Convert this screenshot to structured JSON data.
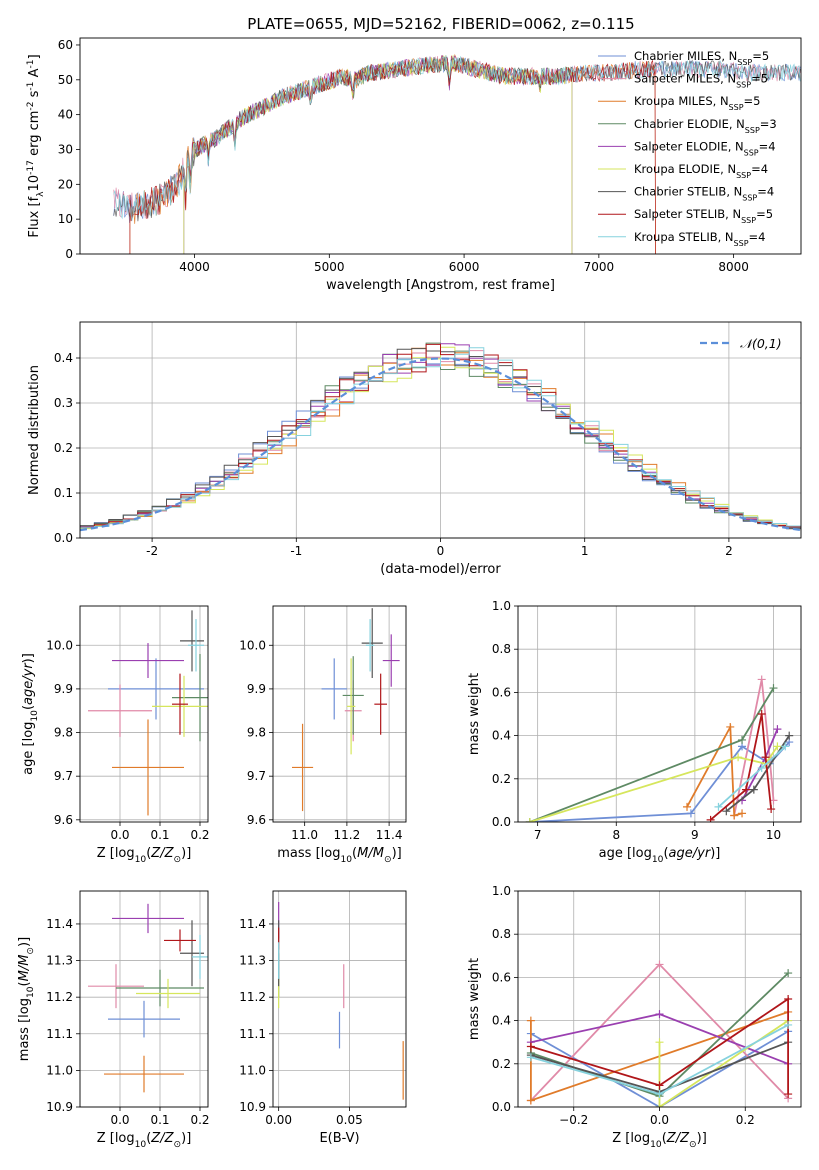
{
  "figure_title": "PLATE=0655, MJD=52162, FIBERID=0062, z=0.115",
  "series_colors": {
    "chabrier_miles": "#6f8fd6",
    "salpeter_miles": "#e08aa8",
    "kroupa_miles": "#e07b2a",
    "chabrier_elodie": "#5e8a64",
    "salpeter_elodie": "#9a3fb0",
    "kroupa_elodie": "#d6e65c",
    "chabrier_stelib": "#555555",
    "salpeter_stelib": "#b0161a",
    "kroupa_stelib": "#86d2de"
  },
  "chart_data": [
    {
      "id": "spectrum",
      "type": "line",
      "title": "PLATE=0655, MJD=52162, FIBERID=0062, z=0.115",
      "xlabel": "wavelength [Angstrom, rest frame]",
      "ylabel": "Flux [f$_\\lambda$10$^{-17}$ erg cm$^{-2}$ s$^{-1}$ A$^{-1}$]",
      "xlim": [
        3150,
        8500
      ],
      "ylim": [
        0,
        62
      ],
      "xticks": [
        4000,
        5000,
        6000,
        7000,
        8000
      ],
      "yticks": [
        0,
        10,
        20,
        30,
        40,
        50,
        60
      ],
      "grid": false,
      "legend": "top-right",
      "continuum": {
        "x": [
          3400,
          3550,
          3700,
          3800,
          3900,
          3950,
          4050,
          4150,
          4250,
          4350,
          4500,
          4650,
          4800,
          4950,
          5100,
          5200,
          5300,
          5500,
          5700,
          5900,
          6100,
          6300,
          6500,
          6700,
          6900,
          7100,
          7300,
          7500,
          7700,
          7900,
          8100,
          8300,
          8500
        ],
        "y": [
          15,
          13,
          15,
          17,
          22,
          28,
          31,
          33,
          36,
          39,
          42,
          45,
          47,
          49,
          51,
          50,
          52,
          53,
          54,
          55,
          53,
          51,
          51,
          51,
          52,
          52,
          53,
          53,
          53,
          53,
          52,
          52,
          52
        ]
      },
      "series": [
        {
          "name": "Chabrier MILES, N$_{SSP}$=5",
          "x_start": 3400,
          "x_end": 8500
        },
        {
          "name": "Salpeter MILES, N$_{SSP}$=5",
          "x_start": 3400,
          "x_end": 8500
        },
        {
          "name": "Kroupa MILES, N$_{SSP}$=5",
          "x_start": 3520,
          "x_end": 7420
        },
        {
          "name": "Chabrier ELODIE, N$_{SSP}$=3",
          "x_start": 3920,
          "x_end": 6800
        },
        {
          "name": "Salpeter ELODIE, N$_{SSP}$=4",
          "x_start": 3920,
          "x_end": 6800
        },
        {
          "name": "Kroupa ELODIE, N$_{SSP}$=4",
          "x_start": 3920,
          "x_end": 6800
        },
        {
          "name": "Chabrier STELIB, N$_{SSP}$=4",
          "x_start": 3400,
          "x_end": 8500
        },
        {
          "name": "Salpeter STELIB, N$_{SSP}$=5",
          "x_start": 3520,
          "x_end": 7420
        },
        {
          "name": "Kroupa STELIB, N$_{SSP}$=4",
          "x_start": 3400,
          "x_end": 8500
        }
      ]
    },
    {
      "id": "residuals",
      "type": "bar",
      "xlabel": "(data-model)/error",
      "ylabel": "Normed distribution",
      "xlim": [
        -2.5,
        2.5
      ],
      "ylim": [
        0,
        0.48
      ],
      "xticks": [
        -2,
        -1,
        0,
        1,
        2
      ],
      "yticks": [
        0.0,
        0.1,
        0.2,
        0.3,
        0.4
      ],
      "grid": true,
      "legend": "top-right",
      "reference": {
        "name": "$\\mathcal{N}(0,1)$",
        "mean": 0,
        "sigma": 1
      },
      "bin_width": 0.1,
      "histogram": "step"
    },
    {
      "id": "age_vs_Z",
      "type": "scatter",
      "xlabel": "Z [log$_{10}$($Z/Z_\\odot$)]",
      "ylabel": "age  [log$_{10}$($age/yr$)]",
      "xlim": [
        -0.1,
        0.22
      ],
      "ylim": [
        9.595,
        10.09
      ],
      "xticks": [
        0.0,
        0.1,
        0.2
      ],
      "yticks": [
        9.6,
        9.7,
        9.8,
        9.9,
        10.0
      ],
      "grid": true,
      "points": [
        {
          "x": 0.09,
          "y": 9.9,
          "xerr": 0.12,
          "yerr": 0.07
        },
        {
          "x": 0.0,
          "y": 9.85,
          "xerr": 0.08,
          "yerr": 0.06
        },
        {
          "x": 0.07,
          "y": 9.72,
          "xerr": 0.09,
          "yerr": 0.11
        },
        {
          "x": 0.2,
          "y": 9.88,
          "xerr": 0.07,
          "yerr": 0.1
        },
        {
          "x": 0.07,
          "y": 9.965,
          "xerr": 0.09,
          "yerr": 0.04
        },
        {
          "x": 0.16,
          "y": 9.86,
          "xerr": 0.08,
          "yerr": 0.07
        },
        {
          "x": 0.18,
          "y": 10.01,
          "xerr": 0.03,
          "yerr": 0.07
        },
        {
          "x": 0.15,
          "y": 9.865,
          "xerr": 0.02,
          "yerr": 0.07
        },
        {
          "x": 0.19,
          "y": 10.0,
          "xerr": 0.02,
          "yerr": 0.06
        }
      ]
    },
    {
      "id": "age_vs_mass",
      "type": "scatter",
      "xlabel": "mass [log$_{10}$($M/M_\\odot$)]",
      "ylabel": "",
      "xlim": [
        10.85,
        11.48
      ],
      "ylim": [
        9.595,
        10.09
      ],
      "xticks": [
        11.0,
        11.2,
        11.4
      ],
      "yticks": [
        9.6,
        9.7,
        9.8,
        9.9,
        10.0
      ],
      "grid": true,
      "points": [
        {
          "x": 11.14,
          "y": 9.9,
          "xerr": 0.06,
          "yerr": 0.07
        },
        {
          "x": 11.23,
          "y": 9.85,
          "xerr": 0.04,
          "yerr": 0.07
        },
        {
          "x": 10.99,
          "y": 9.72,
          "xerr": 0.05,
          "yerr": 0.1
        },
        {
          "x": 11.23,
          "y": 9.885,
          "xerr": 0.05,
          "yerr": 0.09
        },
        {
          "x": 11.41,
          "y": 9.965,
          "xerr": 0.04,
          "yerr": 0.06
        },
        {
          "x": 11.22,
          "y": 9.86,
          "xerr": 0.02,
          "yerr": 0.11
        },
        {
          "x": 11.32,
          "y": 10.005,
          "xerr": 0.05,
          "yerr": 0.08
        },
        {
          "x": 11.36,
          "y": 9.865,
          "xerr": 0.03,
          "yerr": 0.07
        },
        {
          "x": 11.31,
          "y": 10.0,
          "xerr": 0.02,
          "yerr": 0.06
        }
      ]
    },
    {
      "id": "mass_weight_vs_age",
      "type": "line",
      "xlabel": "age  [log$_{10}$($age/yr$)]",
      "ylabel": "mass weight",
      "xlim": [
        6.75,
        10.35
      ],
      "ylim": [
        0,
        1.0
      ],
      "xticks": [
        7,
        8,
        9,
        10
      ],
      "yticks": [
        0.0,
        0.2,
        0.4,
        0.6,
        0.8,
        1.0
      ],
      "grid": true,
      "series": [
        {
          "name": "Chabrier MILES",
          "x": [
            6.9,
            8.95,
            9.6,
            9.95,
            10.2
          ],
          "y": [
            0.0,
            0.04,
            0.35,
            0.27,
            0.37
          ]
        },
        {
          "name": "Salpeter MILES",
          "x": [
            9.5,
            9.85,
            9.95,
            10.0
          ],
          "y": [
            0.03,
            0.66,
            0.3,
            0.1
          ]
        },
        {
          "name": "Kroupa MILES",
          "x": [
            8.9,
            9.45,
            9.5,
            9.6
          ],
          "y": [
            0.07,
            0.44,
            0.03,
            0.04
          ]
        },
        {
          "name": "Chabrier ELODIE",
          "x": [
            6.9,
            9.6,
            10.0
          ],
          "y": [
            0.0,
            0.38,
            0.62
          ]
        },
        {
          "name": "Salpeter ELODIE",
          "x": [
            9.6,
            9.9,
            10.05
          ],
          "y": [
            0.1,
            0.3,
            0.43
          ]
        },
        {
          "name": "Kroupa ELODIE",
          "x": [
            6.9,
            9.55,
            9.9,
            10.05
          ],
          "y": [
            0.0,
            0.3,
            0.27,
            0.35
          ]
        },
        {
          "name": "Chabrier STELIB",
          "x": [
            9.4,
            9.75,
            10.2
          ],
          "y": [
            0.05,
            0.15,
            0.4
          ]
        },
        {
          "name": "Salpeter STELIB",
          "x": [
            9.2,
            9.65,
            9.85,
            9.9,
            9.97
          ],
          "y": [
            0.01,
            0.15,
            0.5,
            0.3,
            0.06
          ]
        },
        {
          "name": "Kroupa STELIB",
          "x": [
            9.3,
            9.85,
            10.15
          ],
          "y": [
            0.07,
            0.25,
            0.35
          ]
        }
      ]
    },
    {
      "id": "mass_vs_Z",
      "type": "scatter",
      "xlabel": "Z [log$_{10}$($Z/Z_\\odot$)]",
      "ylabel": "mass [log$_{10}$($M/M_\\odot$)]",
      "xlim": [
        -0.1,
        0.22
      ],
      "ylim": [
        10.9,
        11.49
      ],
      "xticks": [
        0.0,
        0.1,
        0.2
      ],
      "yticks": [
        10.9,
        11.0,
        11.1,
        11.2,
        11.3,
        11.4
      ],
      "grid": true,
      "points": [
        {
          "x": 0.06,
          "y": 11.14,
          "xerr": 0.09,
          "yerr": 0.05
        },
        {
          "x": -0.01,
          "y": 11.23,
          "xerr": 0.07,
          "yerr": 0.06
        },
        {
          "x": 0.06,
          "y": 10.99,
          "xerr": 0.1,
          "yerr": 0.05
        },
        {
          "x": 0.1,
          "y": 11.225,
          "xerr": 0.11,
          "yerr": 0.05
        },
        {
          "x": 0.07,
          "y": 11.415,
          "xerr": 0.09,
          "yerr": 0.04
        },
        {
          "x": 0.12,
          "y": 11.21,
          "xerr": 0.08,
          "yerr": 0.04
        },
        {
          "x": 0.18,
          "y": 11.32,
          "xerr": 0.03,
          "yerr": 0.09
        },
        {
          "x": 0.15,
          "y": 11.355,
          "xerr": 0.04,
          "yerr": 0.03
        },
        {
          "x": 0.2,
          "y": 11.31,
          "xerr": 0.02,
          "yerr": 0.06
        }
      ]
    },
    {
      "id": "mass_vs_ebv",
      "type": "scatter",
      "xlabel": "E(B-V)",
      "ylabel": "",
      "xlim": [
        -0.004,
        0.09
      ],
      "ylim": [
        10.9,
        11.49
      ],
      "xticks": [
        0.0,
        0.05
      ],
      "yticks": [
        10.9,
        11.0,
        11.1,
        11.2,
        11.3,
        11.4
      ],
      "grid": true,
      "points": [
        {
          "x": 0.043,
          "y": 11.11,
          "yerr": 0.05
        },
        {
          "x": 0.046,
          "y": 11.23,
          "yerr": 0.06
        },
        {
          "x": 0.088,
          "y": 11.0,
          "yerr": 0.08
        },
        {
          "x": 0.0,
          "y": 11.26,
          "yerr": 0.06
        },
        {
          "x": 0.0,
          "y": 11.41,
          "yerr": 0.05
        },
        {
          "x": 0.0,
          "y": 11.21,
          "yerr": 0.04
        },
        {
          "x": 0.0,
          "y": 11.32,
          "yerr": 0.09
        },
        {
          "x": 0.0,
          "y": 11.36,
          "yerr": 0.03
        },
        {
          "x": 0.0,
          "y": 11.3,
          "yerr": 0.05
        }
      ]
    },
    {
      "id": "mass_weight_vs_Z",
      "type": "line",
      "xlabel": "Z [log$_{10}$($Z/Z_\\odot$)]",
      "ylabel": "mass weight",
      "xlim": [
        -0.33,
        0.33
      ],
      "ylim": [
        0,
        1.0
      ],
      "xticks": [
        -0.2,
        0.0,
        0.2
      ],
      "yticks": [
        0.0,
        0.2,
        0.4,
        0.6,
        0.8,
        1.0
      ],
      "grid": true,
      "series": [
        {
          "name": "Chabrier MILES",
          "x": [
            -0.3,
            0.0,
            0.3
          ],
          "y": [
            0.34,
            0.0,
            0.35
          ]
        },
        {
          "name": "Salpeter MILES",
          "x": [
            -0.3,
            0.0,
            0.3
          ],
          "y": [
            0.03,
            0.66,
            0.04
          ]
        },
        {
          "name": "Kroupa MILES",
          "x": [
            -0.3,
            -0.3,
            0.3
          ],
          "y": [
            0.4,
            0.03,
            0.44
          ]
        },
        {
          "name": "Chabrier ELODIE",
          "x": [
            -0.3,
            0.0,
            0.3
          ],
          "y": [
            0.25,
            0.05,
            0.62
          ]
        },
        {
          "name": "Salpeter ELODIE",
          "x": [
            -0.3,
            0.0,
            0.3
          ],
          "y": [
            0.3,
            0.43,
            0.2
          ]
        },
        {
          "name": "Kroupa ELODIE",
          "x": [
            0.0,
            0.0,
            0.3
          ],
          "y": [
            0.3,
            0.0,
            0.4
          ]
        },
        {
          "name": "Chabrier STELIB",
          "x": [
            -0.3,
            0.0,
            0.3
          ],
          "y": [
            0.24,
            0.07,
            0.3
          ]
        },
        {
          "name": "Salpeter STELIB",
          "x": [
            -0.3,
            0.0,
            0.3,
            0.3
          ],
          "y": [
            0.28,
            0.1,
            0.5,
            0.06
          ]
        },
        {
          "name": "Kroupa STELIB",
          "x": [
            -0.3,
            0.0,
            0.3
          ],
          "y": [
            0.23,
            0.06,
            0.38
          ]
        }
      ]
    }
  ]
}
